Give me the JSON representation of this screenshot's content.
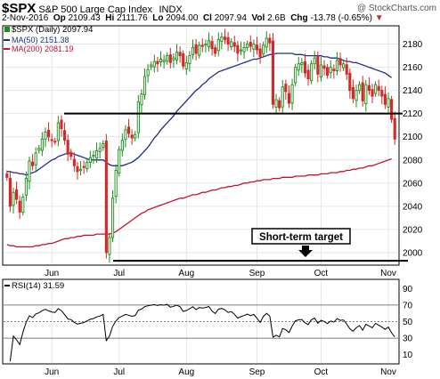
{
  "header": {
    "symbol": "$SPX",
    "name": "S&P 500 Large Cap Index",
    "exchange": "INDX",
    "watermark": "@ StockCharts.com",
    "date": "2-Nov-2016",
    "open_label": "Op",
    "open": "2109.43",
    "high_label": "Hi",
    "high": "2111.76",
    "low_label": "Lo",
    "low": "2094.00",
    "close_label": "Cl",
    "close": "2097.94",
    "vol_label": "Vol",
    "vol": "2.6B",
    "chg_label": "Chg",
    "chg": "-13.78 (-0.65%)",
    "chg_marker": "▼"
  },
  "colors": {
    "up": "#1a8f1a",
    "down": "#d62828",
    "ma50": "#1f2d8a",
    "ma200": "#c8102e",
    "rsi": "#000000"
  },
  "chart_data": [
    {
      "type": "candlestick",
      "legend": {
        "price": "$SPX (Daily) 2097.94",
        "ma50": "MA(50) 2151.38",
        "ma200": "MA(200) 2081.19"
      },
      "ylim": [
        1990,
        2195
      ],
      "yticks": [
        2000,
        2020,
        2040,
        2060,
        2080,
        2100,
        2120,
        2140,
        2160,
        2180
      ],
      "x_tick_labels": [
        {
          "label": "Jun",
          "index": 14
        },
        {
          "label": "Jul",
          "index": 35
        },
        {
          "label": "Aug",
          "index": 56
        },
        {
          "label": "Sep",
          "index": 78
        },
        {
          "label": "Oct",
          "index": 98
        },
        {
          "label": "Nov",
          "index": 119
        }
      ],
      "closes": [
        2065,
        2040,
        2052,
        2046,
        2035,
        2048,
        2064,
        2079,
        2075,
        2086,
        2090,
        2098,
        2104,
        2100,
        2097,
        2096,
        2112,
        2107,
        2097,
        2085,
        2083,
        2075,
        2070,
        2072,
        2074,
        2078,
        2082,
        2084,
        2088,
        2090,
        2094,
        2000,
        2013,
        2047,
        2071,
        2089,
        2097,
        2106,
        2103,
        2099,
        2102,
        2130,
        2137,
        2152,
        2158,
        2162,
        2165,
        2163,
        2167,
        2166,
        2170,
        2164,
        2168,
        2173,
        2170,
        2161,
        2164,
        2170,
        2177,
        2172,
        2179,
        2178,
        2180,
        2183,
        2176,
        2172,
        2184,
        2186,
        2184,
        2180,
        2182,
        2178,
        2172,
        2175,
        2177,
        2180,
        2178,
        2180,
        2175,
        2169,
        2179,
        2185,
        2181,
        2128,
        2132,
        2125,
        2143,
        2139,
        2129,
        2145,
        2160,
        2163,
        2164,
        2155,
        2150,
        2163,
        2168,
        2154,
        2162,
        2159,
        2153,
        2160,
        2157,
        2166,
        2162,
        2163,
        2154,
        2140,
        2133,
        2140,
        2145,
        2131,
        2145,
        2140,
        2135,
        2145,
        2140,
        2135,
        2128,
        2133,
        2115,
        2098
      ],
      "ma50": [
        2070,
        2070,
        2069,
        2069,
        2068,
        2068,
        2067,
        2068,
        2069,
        2070,
        2072,
        2074,
        2076,
        2078,
        2080,
        2081,
        2083,
        2084,
        2085,
        2086,
        2086,
        2085,
        2084,
        2083,
        2082,
        2081,
        2080,
        2080,
        2080,
        2080,
        2080,
        2078,
        2076,
        2075,
        2075,
        2075,
        2075,
        2076,
        2077,
        2078,
        2080,
        2082,
        2085,
        2088,
        2091,
        2095,
        2099,
        2102,
        2106,
        2109,
        2112,
        2115,
        2118,
        2122,
        2125,
        2128,
        2131,
        2134,
        2137,
        2140,
        2142,
        2145,
        2147,
        2150,
        2152,
        2154,
        2156,
        2157,
        2158,
        2159,
        2160,
        2161,
        2162,
        2163,
        2164,
        2165,
        2166,
        2167,
        2167,
        2168,
        2169,
        2170,
        2171,
        2171,
        2172,
        2172,
        2172,
        2172,
        2172,
        2172,
        2171,
        2171,
        2171,
        2170,
        2170,
        2170,
        2170,
        2170,
        2170,
        2169,
        2169,
        2168,
        2168,
        2168,
        2167,
        2166,
        2165,
        2165,
        2164,
        2164,
        2163,
        2162,
        2161,
        2160,
        2159,
        2158,
        2157,
        2156,
        2155,
        2153,
        2151
      ],
      "ma200": [
        2007,
        2006,
        2006,
        2005,
        2005,
        2005,
        2005,
        2005,
        2005,
        2006,
        2006,
        2007,
        2007,
        2008,
        2008,
        2009,
        2010,
        2011,
        2012,
        2012,
        2013,
        2013,
        2014,
        2014,
        2015,
        2015,
        2015,
        2015,
        2016,
        2016,
        2016,
        2016,
        2016,
        2017,
        2018,
        2020,
        2022,
        2024,
        2026,
        2028,
        2030,
        2032,
        2034,
        2035,
        2037,
        2038,
        2039,
        2040,
        2041,
        2042,
        2043,
        2044,
        2045,
        2046,
        2047,
        2047,
        2048,
        2049,
        2050,
        2050,
        2051,
        2052,
        2052,
        2053,
        2054,
        2054,
        2055,
        2056,
        2056,
        2057,
        2057,
        2058,
        2058,
        2059,
        2060,
        2060,
        2061,
        2061,
        2062,
        2062,
        2063,
        2063,
        2063,
        2064,
        2064,
        2064,
        2065,
        2065,
        2065,
        2065,
        2066,
        2066,
        2066,
        2066,
        2067,
        2067,
        2067,
        2067,
        2068,
        2068,
        2068,
        2069,
        2069,
        2069,
        2070,
        2070,
        2071,
        2071,
        2072,
        2072,
        2073,
        2073,
        2074,
        2075,
        2075,
        2076,
        2077,
        2078,
        2079,
        2080,
        2081
      ],
      "support_level": 2120,
      "target_level": 1993,
      "target_label": "Short-term target"
    },
    {
      "type": "line",
      "title": "RSI(14) 31.59",
      "ylim": [
        0,
        100
      ],
      "yticks": [
        10,
        30,
        50,
        70,
        90
      ],
      "ref_lines": [
        30,
        50,
        70
      ]
    }
  ]
}
